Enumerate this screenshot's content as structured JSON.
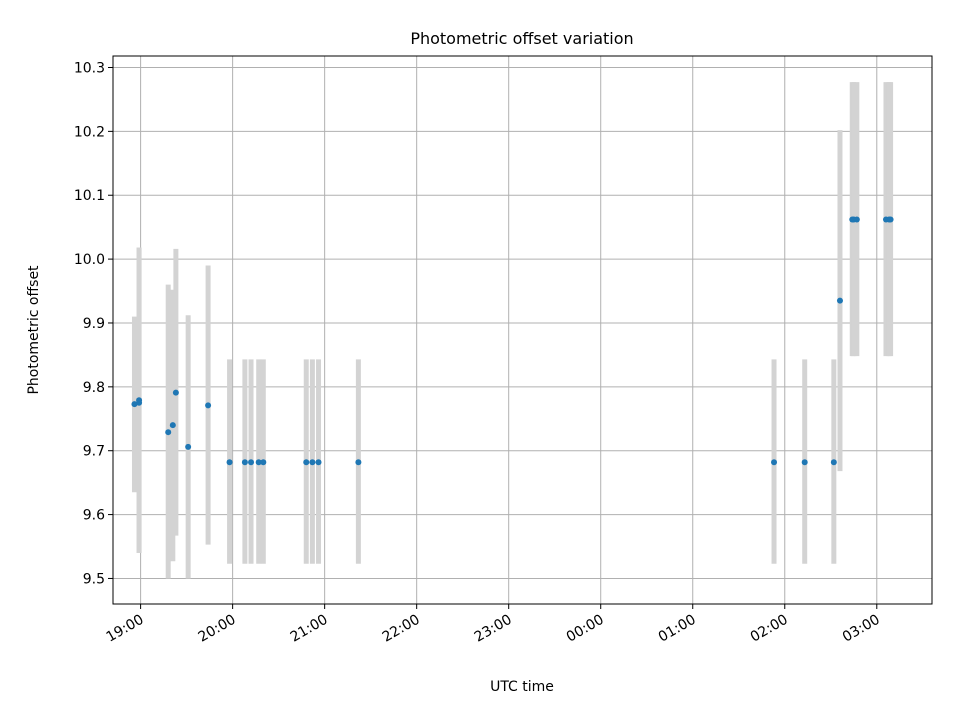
{
  "chart_data": {
    "type": "scatter",
    "title": "Photometric offset variation",
    "xlabel": "UTC time",
    "ylabel": "Photometric offset",
    "x_axis_kind": "time",
    "xlim": [
      "18:42",
      "03:36"
    ],
    "ylim": [
      9.46,
      10.318
    ],
    "x_ticks": [
      "19:00",
      "20:00",
      "21:00",
      "22:00",
      "23:00",
      "00:00",
      "01:00",
      "02:00",
      "03:00"
    ],
    "y_ticks": [
      "9.5",
      "9.6",
      "9.7",
      "9.8",
      "9.9",
      "10.0",
      "10.1",
      "10.2",
      "10.3"
    ],
    "grid": true,
    "series": [
      {
        "marker_color": "#1f77b4",
        "errorbar_color": "#d3d3d3",
        "points": [
          {
            "x": "18:56",
            "y": 9.773,
            "ylow": 9.635,
            "yhigh": 9.91
          },
          {
            "x": "18:59",
            "y": 9.775,
            "ylow": 9.54,
            "yhigh": 10.018
          },
          {
            "x": "18:59",
            "y": 9.779,
            "ylow": 9.54,
            "yhigh": 10.018
          },
          {
            "x": "19:18",
            "y": 9.729,
            "ylow": 9.5,
            "yhigh": 9.96
          },
          {
            "x": "19:21",
            "y": 9.74,
            "ylow": 9.527,
            "yhigh": 9.952
          },
          {
            "x": "19:23",
            "y": 9.791,
            "ylow": 9.567,
            "yhigh": 10.016
          },
          {
            "x": "19:31",
            "y": 9.706,
            "ylow": 9.5,
            "yhigh": 9.912
          },
          {
            "x": "19:44",
            "y": 9.771,
            "ylow": 9.553,
            "yhigh": 9.99
          },
          {
            "x": "19:58",
            "y": 9.682,
            "ylow": 9.523,
            "yhigh": 9.843
          },
          {
            "x": "20:08",
            "y": 9.682,
            "ylow": 9.523,
            "yhigh": 9.843
          },
          {
            "x": "20:12",
            "y": 9.682,
            "ylow": 9.523,
            "yhigh": 9.843
          },
          {
            "x": "20:17",
            "y": 9.682,
            "ylow": 9.523,
            "yhigh": 9.843
          },
          {
            "x": "20:20",
            "y": 9.682,
            "ylow": 9.523,
            "yhigh": 9.843
          },
          {
            "x": "20:48",
            "y": 9.682,
            "ylow": 9.523,
            "yhigh": 9.843
          },
          {
            "x": "20:52",
            "y": 9.682,
            "ylow": 9.523,
            "yhigh": 9.843
          },
          {
            "x": "20:56",
            "y": 9.682,
            "ylow": 9.523,
            "yhigh": 9.843
          },
          {
            "x": "21:22",
            "y": 9.682,
            "ylow": 9.523,
            "yhigh": 9.843
          },
          {
            "x": "01:53",
            "y": 9.682,
            "ylow": 9.523,
            "yhigh": 9.843
          },
          {
            "x": "02:13",
            "y": 9.682,
            "ylow": 9.523,
            "yhigh": 9.843
          },
          {
            "x": "02:32",
            "y": 9.682,
            "ylow": 9.523,
            "yhigh": 9.843
          },
          {
            "x": "02:36",
            "y": 9.935,
            "ylow": 9.668,
            "yhigh": 10.202
          },
          {
            "x": "02:44",
            "y": 10.062,
            "ylow": 9.848,
            "yhigh": 10.277
          },
          {
            "x": "02:45",
            "y": 10.062,
            "ylow": 9.848,
            "yhigh": 10.277
          },
          {
            "x": "02:47",
            "y": 10.062,
            "ylow": 9.848,
            "yhigh": 10.277
          },
          {
            "x": "03:06",
            "y": 10.062,
            "ylow": 9.848,
            "yhigh": 10.277
          },
          {
            "x": "03:08",
            "y": 10.062,
            "ylow": 9.848,
            "yhigh": 10.277
          },
          {
            "x": "03:09",
            "y": 10.062,
            "ylow": 9.848,
            "yhigh": 10.277
          }
        ]
      }
    ]
  }
}
